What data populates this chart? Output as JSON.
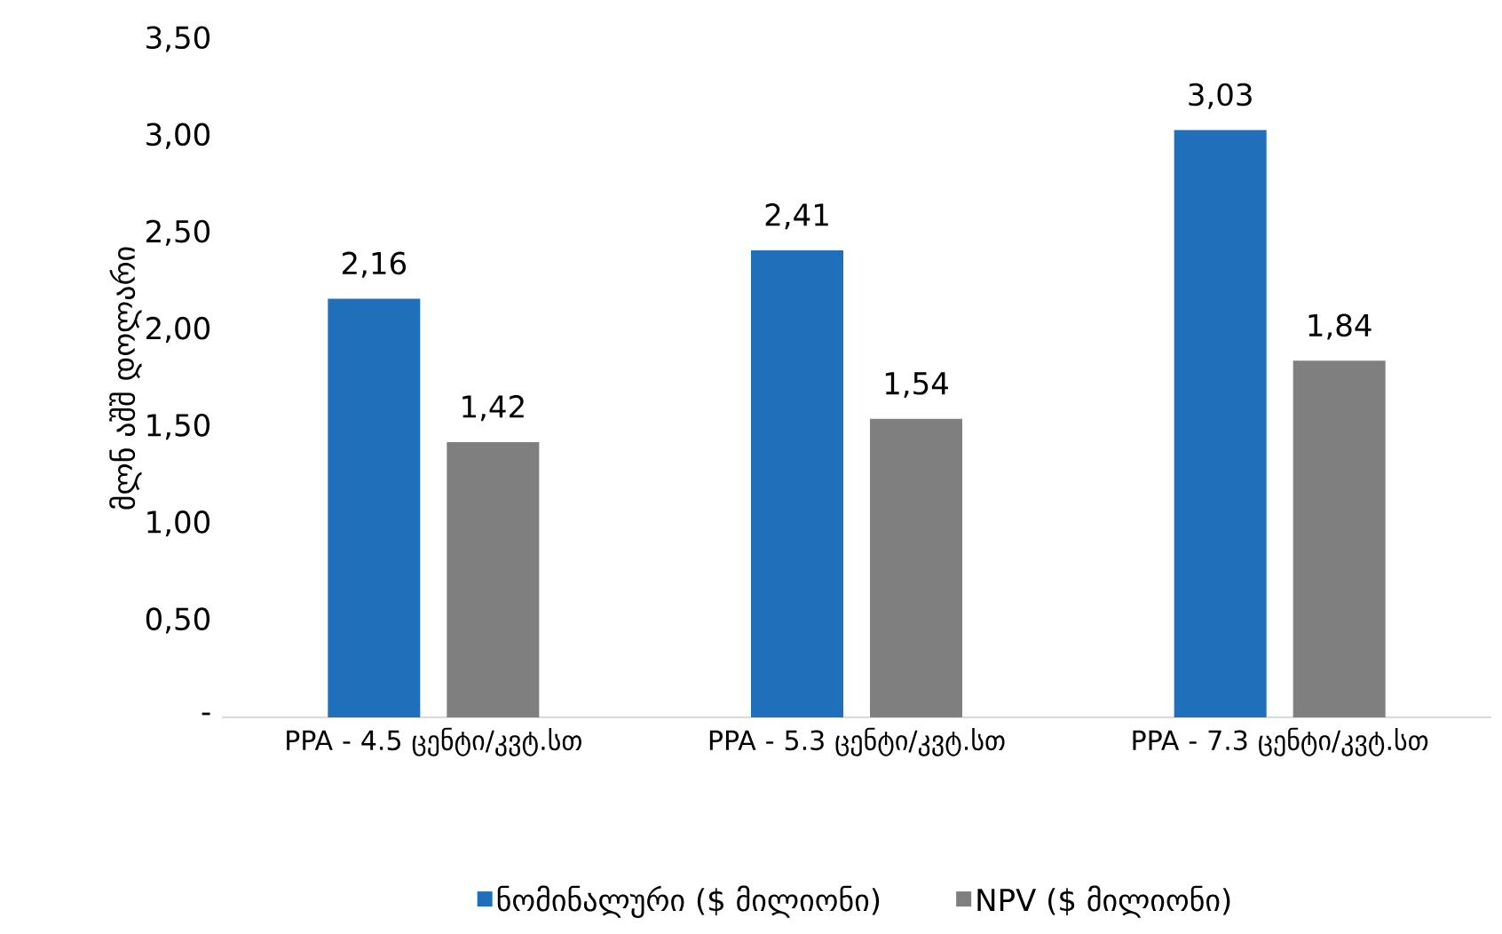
{
  "chart_data": {
    "type": "bar",
    "ylabel": "მლნ აშშ დოლარი",
    "categories": [
      "PPA - 4.5 ცენტი/კვტ.სთ",
      "PPA - 5.3 ცენტი/კვტ.სთ",
      "PPA - 7.3 ცენტი/კვტ.სთ"
    ],
    "series": [
      {
        "name": "ნომინალური ($ მილიონი)",
        "color": "#1f6fba",
        "values": [
          2.16,
          2.41,
          3.03
        ],
        "value_labels": [
          "2,16",
          "2,41",
          "3,03"
        ]
      },
      {
        "name": "NPV ($ მილიონი)",
        "color": "#7f7f7f",
        "values": [
          1.42,
          1.54,
          1.84
        ],
        "value_labels": [
          "1,42",
          "1,54",
          "1,84"
        ]
      }
    ],
    "ylim": [
      0,
      3.5
    ],
    "yticks": [
      {
        "value": 0,
        "label": "-"
      },
      {
        "value": 0.5,
        "label": "0,50"
      },
      {
        "value": 1,
        "label": "1,00"
      },
      {
        "value": 1.5,
        "label": "1,50"
      },
      {
        "value": 2,
        "label": "2,00"
      },
      {
        "value": 2.5,
        "label": "2,50"
      },
      {
        "value": 3,
        "label": "3,00"
      },
      {
        "value": 3.5,
        "label": "3,50"
      }
    ],
    "grid": false,
    "legend": "bottom"
  }
}
